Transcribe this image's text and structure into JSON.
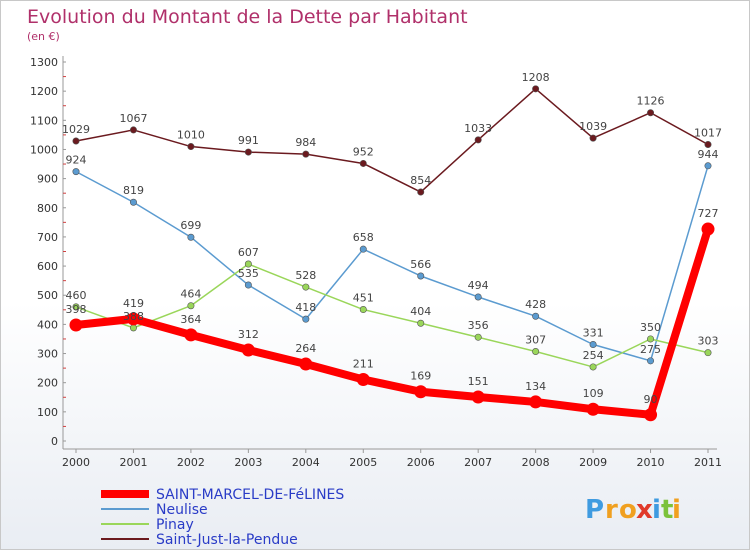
{
  "chart_data": {
    "type": "line",
    "title": "Evolution du Montant de la Dette par Habitant",
    "subtitle": "(en €)",
    "categories": [
      "2000",
      "2001",
      "2002",
      "2003",
      "2004",
      "2005",
      "2006",
      "2007",
      "2008",
      "2009",
      "2010",
      "2011"
    ],
    "ylim": [
      0,
      1300
    ],
    "yticks": [
      0,
      100,
      200,
      300,
      400,
      500,
      600,
      700,
      800,
      900,
      1000,
      1100,
      1200,
      1300
    ],
    "grid": false,
    "legend_position": "bottom-left",
    "series": [
      {
        "name": "Saint-Just-la-Pendue",
        "color": "#6b1a1f",
        "values": [
          1029,
          1067,
          1010,
          991,
          984,
          952,
          854,
          1033,
          1208,
          1039,
          1126,
          1017
        ]
      },
      {
        "name": "Neulise",
        "color": "#5b9bd0",
        "values": [
          924,
          819,
          699,
          535,
          418,
          658,
          566,
          494,
          428,
          331,
          275,
          944
        ]
      },
      {
        "name": "Pinay",
        "color": "#9ad65a",
        "values": [
          460,
          388,
          464,
          607,
          528,
          451,
          404,
          356,
          307,
          254,
          350,
          303
        ]
      },
      {
        "name": "SAINT-MARCEL-DE-FéLINES",
        "color": "#ff0000",
        "highlight": true,
        "values": [
          398,
          419,
          364,
          312,
          264,
          211,
          169,
          151,
          134,
          109,
          90,
          727
        ]
      }
    ]
  },
  "legend": {
    "items": [
      {
        "label": "SAINT-MARCEL-DE-FéLINES",
        "color": "#ff0000"
      },
      {
        "label": "Neulise",
        "color": "#5b9bd0"
      },
      {
        "label": "Pinay",
        "color": "#9ad65a"
      },
      {
        "label": "Saint-Just-la-Pendue",
        "color": "#6b1a1f"
      }
    ]
  },
  "logo": {
    "letters": [
      "P",
      "r",
      "o",
      "x",
      "i",
      "t",
      "i"
    ],
    "colors": [
      "#3f9be0",
      "#f0a020",
      "#f0a020",
      "#e03a2a",
      "#3f9be0",
      "#7cc23a",
      "#f0a020"
    ]
  }
}
